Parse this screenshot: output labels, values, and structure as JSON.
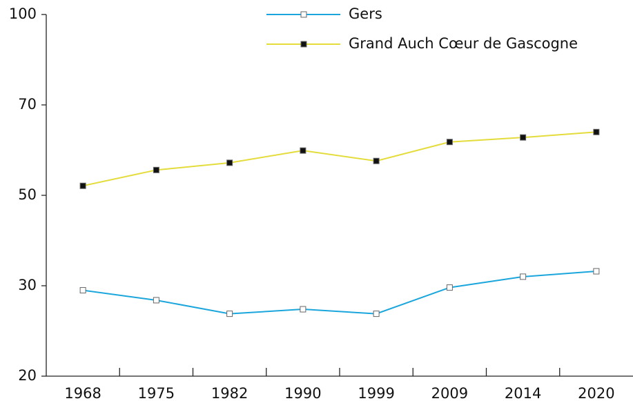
{
  "chart_data": {
    "type": "line",
    "categories": [
      "1968",
      "1975",
      "1982",
      "1990",
      "1999",
      "2009",
      "2014",
      "2020"
    ],
    "series": [
      {
        "name": "Gers",
        "color": "#1aa6dc",
        "marker_color": "#ffffff",
        "values": [
          29.5,
          28.4,
          26.9,
          27.4,
          26.9,
          29.8,
          32.0,
          33.2
        ]
      },
      {
        "name": "Grand Auch Cœur de Gascogne",
        "color": "#e3dc3a",
        "marker_color": "#111111",
        "values": [
          52.1,
          55.6,
          57.2,
          59.9,
          57.6,
          61.8,
          62.8,
          64.0
        ]
      }
    ],
    "ylim": [
      20,
      100
    ],
    "yticks": [
      20,
      30,
      50,
      70,
      100
    ],
    "grid": false
  }
}
